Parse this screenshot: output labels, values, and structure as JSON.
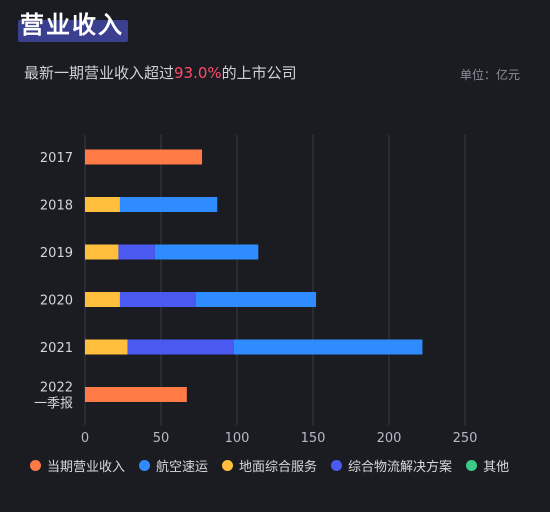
{
  "header": {
    "title": "营业收入",
    "subtitle_prefix": "最新一期营业收入超过",
    "subtitle_highlight": "93.0%",
    "subtitle_suffix": "的上市公司",
    "unit": "单位：亿元"
  },
  "colors": {
    "当期营业收入": "#ff7a45",
    "航空速运": "#2f8cff",
    "地面综合服务": "#ffbe3c",
    "综合物流解决方案": "#4a5af0",
    "其他": "#3cc98a"
  },
  "chart_data": {
    "type": "bar",
    "orientation": "horizontal",
    "stacked": true,
    "categories": [
      "2017",
      "2018",
      "2019",
      "2020",
      "2021",
      "2022一季报"
    ],
    "category_lines": [
      [
        "2017"
      ],
      [
        "2018"
      ],
      [
        "2019"
      ],
      [
        "2020"
      ],
      [
        "2021"
      ],
      [
        "2022",
        "一季报"
      ]
    ],
    "series": [
      {
        "name": "当期营业收入",
        "values": [
          77,
          0,
          0,
          0,
          0,
          67
        ]
      },
      {
        "name": "地面综合服务",
        "values": [
          0,
          23,
          22,
          23,
          28,
          0
        ]
      },
      {
        "name": "综合物流解决方案",
        "values": [
          0,
          0,
          24,
          50,
          70,
          0
        ]
      },
      {
        "name": "航空速运",
        "values": [
          0,
          64,
          68,
          79,
          124,
          0
        ]
      },
      {
        "name": "其他",
        "values": [
          0,
          0,
          0,
          0,
          0,
          0
        ]
      }
    ],
    "xlim": [
      0,
      250
    ],
    "xticks": [
      0,
      50,
      100,
      150,
      200,
      250
    ],
    "grid": true,
    "legend_position": "bottom"
  }
}
